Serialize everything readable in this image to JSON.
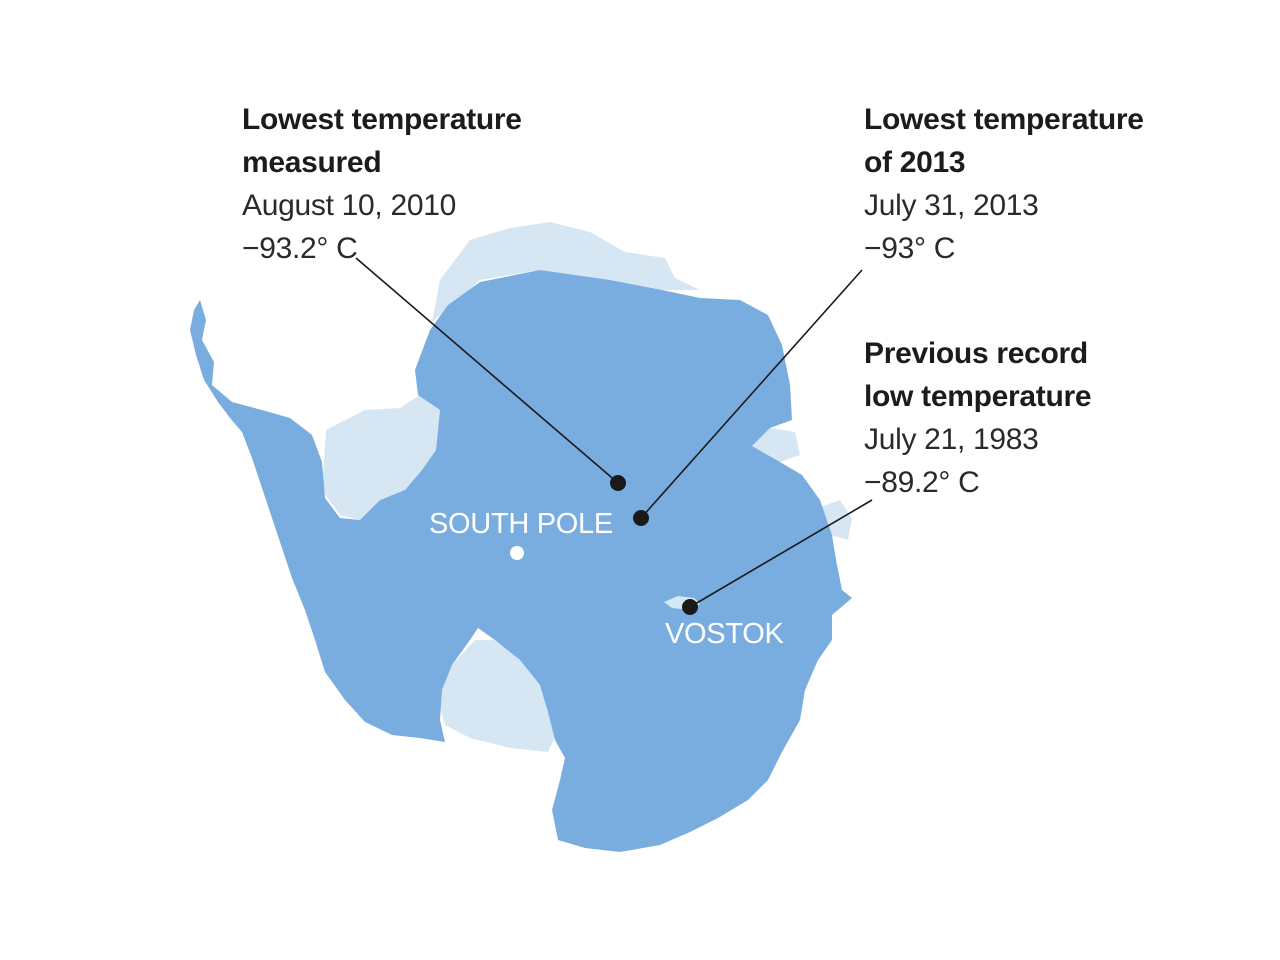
{
  "annotations": {
    "lowest_measured": {
      "title_line1": "Lowest temperature",
      "title_line2": "measured",
      "date": "August 10, 2010",
      "temperature": "−93.2° C"
    },
    "lowest_2013": {
      "title_line1": "Lowest temperature",
      "title_line2": "of 2013",
      "date": "July 31, 2013",
      "temperature": "−93° C"
    },
    "previous_record": {
      "title_line1": "Previous record",
      "title_line2": "low temperature",
      "date": "July 21, 1983",
      "temperature": "−89.2° C"
    }
  },
  "places": {
    "south_pole": "SOUTH POLE",
    "vostok": "VOSTOK"
  },
  "colors": {
    "land": "#7aaddf",
    "ice_shelf": "#d6e7f3",
    "marker": "#1a1a1a",
    "leader_line": "#1a1a1a",
    "pole_marker": "#ffffff",
    "text": "#1c1c1c"
  }
}
